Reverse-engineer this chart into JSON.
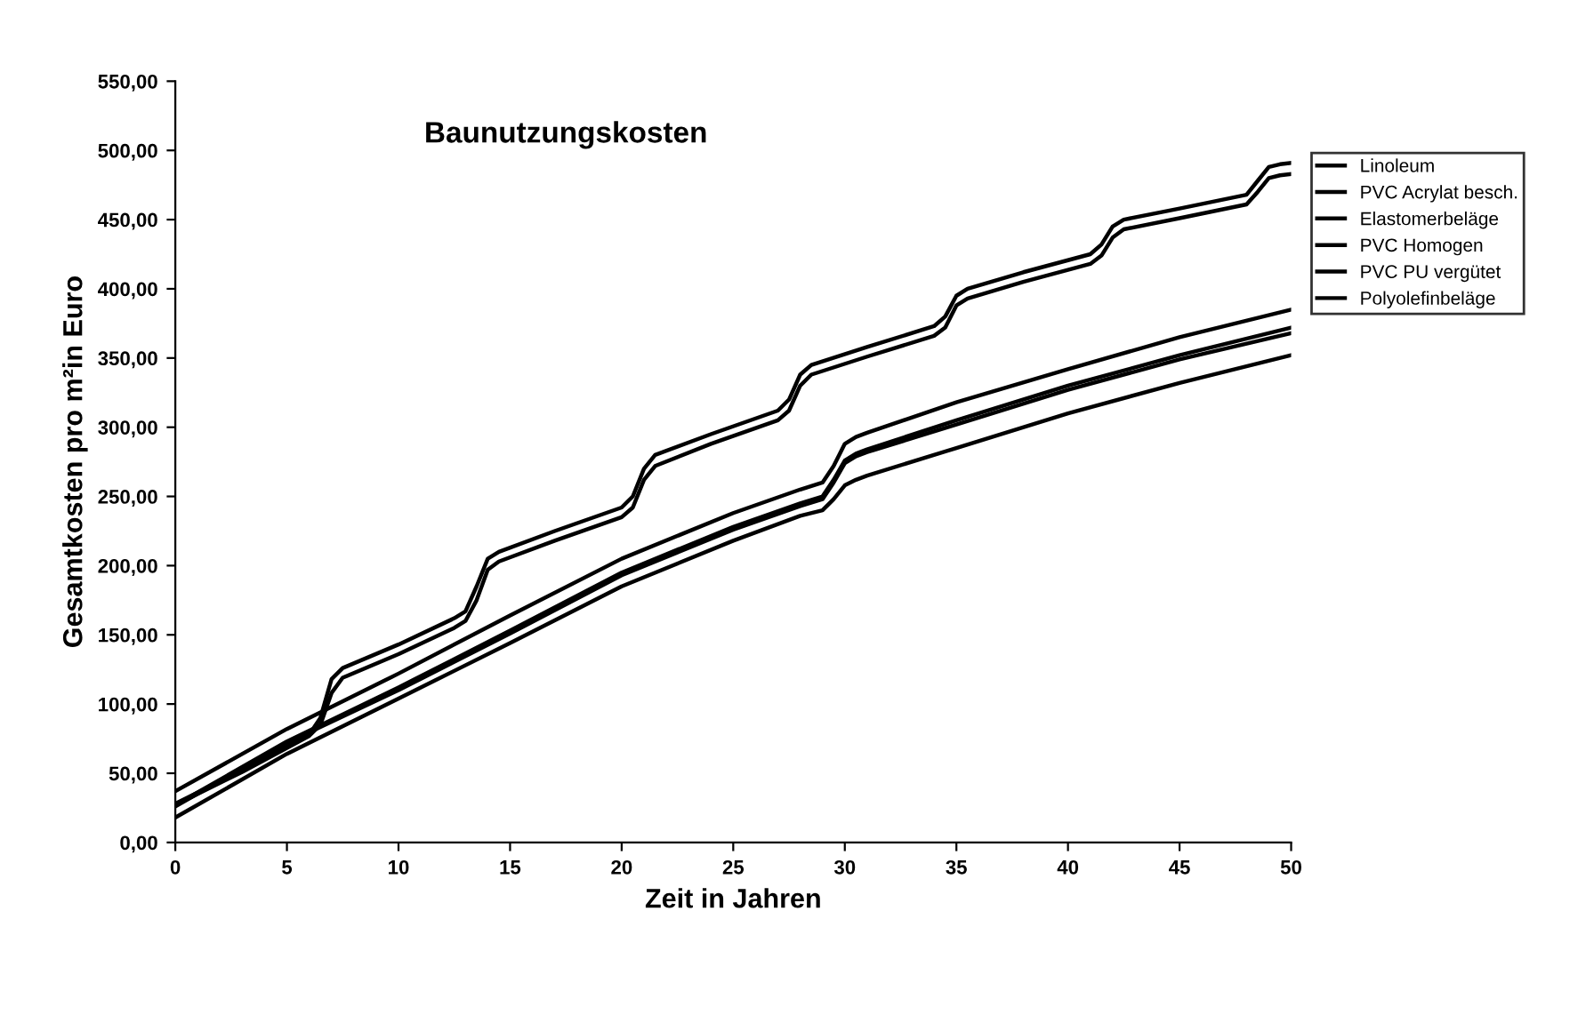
{
  "chart_data": {
    "type": "line",
    "title": "Baunutzungskosten",
    "xlabel": "Zeit in Jahren",
    "ylabel": "Gesamtkosten pro m²in Euro",
    "xlim": [
      0,
      50
    ],
    "xticks": [
      0,
      5,
      10,
      15,
      20,
      25,
      30,
      35,
      40,
      45,
      50
    ],
    "ylim": [
      0,
      550
    ],
    "yticks": [
      {
        "value": 0,
        "label": "0,00"
      },
      {
        "value": 50,
        "label": "50,00"
      },
      {
        "value": 100,
        "label": "100,00"
      },
      {
        "value": 150,
        "label": "150,00"
      },
      {
        "value": 200,
        "label": "200,00"
      },
      {
        "value": 250,
        "label": "250,00"
      },
      {
        "value": 300,
        "label": "300,00"
      },
      {
        "value": 350,
        "label": "350,00"
      },
      {
        "value": 400,
        "label": "400,00"
      },
      {
        "value": 450,
        "label": "450,00"
      },
      {
        "value": 500,
        "label": "500,00"
      },
      {
        "value": 550,
        "label": "550,00"
      }
    ],
    "grid": false,
    "legend": "right",
    "marker": "none",
    "line_style": "solid",
    "series": [
      {
        "name": "Linoleum",
        "color": "#000000",
        "x": [
          0,
          3,
          6,
          6.5,
          7,
          7.5,
          10,
          12.5,
          13,
          13.5,
          14,
          14.5,
          17,
          20,
          20.5,
          21,
          21.5,
          24,
          27,
          27.5,
          28,
          28.5,
          31,
          34,
          34.5,
          35,
          35.5,
          38,
          41,
          41.5,
          42,
          42.5,
          45,
          48,
          48.5,
          49,
          49.5,
          50
        ],
        "values": [
          28,
          52,
          78,
          90,
          118,
          126,
          143,
          162,
          167,
          185,
          205,
          210,
          225,
          242,
          250,
          270,
          280,
          295,
          312,
          320,
          338,
          345,
          358,
          373,
          380,
          395,
          400,
          412,
          425,
          432,
          445,
          450,
          458,
          468,
          478,
          488,
          490,
          491
        ]
      },
      {
        "name": "PVC Acrylat besch.",
        "color": "#000000",
        "x": [
          0,
          3,
          6,
          6.5,
          7,
          7.5,
          10,
          12.5,
          13,
          13.5,
          14,
          14.5,
          17,
          20,
          20.5,
          21,
          21.5,
          24,
          27,
          27.5,
          28,
          28.5,
          31,
          34,
          34.5,
          35,
          35.5,
          38,
          41,
          41.5,
          42,
          42.5,
          45,
          48,
          48.5,
          49,
          49.5,
          50
        ],
        "values": [
          27,
          51,
          77,
          85,
          108,
          119,
          136,
          155,
          160,
          175,
          197,
          203,
          218,
          235,
          242,
          262,
          272,
          288,
          305,
          312,
          330,
          338,
          351,
          366,
          372,
          388,
          393,
          405,
          418,
          424,
          437,
          443,
          451,
          461,
          470,
          480,
          482,
          483
        ]
      },
      {
        "name": "Elastomerbeläge",
        "color": "#000000",
        "x": [
          0,
          5,
          10,
          15,
          20,
          25,
          28,
          29,
          29.5,
          30,
          30.5,
          31,
          35,
          40,
          45,
          50
        ],
        "values": [
          37,
          82,
          122,
          164,
          205,
          238,
          255,
          260,
          272,
          288,
          293,
          296,
          318,
          342,
          365,
          385
        ]
      },
      {
        "name": "PVC Homogen",
        "color": "#000000",
        "x": [
          0,
          5,
          10,
          15,
          20,
          25,
          28,
          29,
          29.5,
          30,
          30.5,
          31,
          35,
          40,
          45,
          50
        ],
        "values": [
          27,
          73,
          112,
          153,
          195,
          228,
          245,
          250,
          262,
          276,
          281,
          284,
          305,
          330,
          352,
          372
        ]
      },
      {
        "name": "PVC PU vergütet",
        "color": "#000000",
        "x": [
          0,
          5,
          10,
          15,
          20,
          25,
          28,
          29,
          29.5,
          30,
          30.5,
          31,
          35,
          40,
          45,
          50
        ],
        "values": [
          26,
          72,
          110,
          151,
          193,
          226,
          243,
          248,
          260,
          274,
          279,
          282,
          302,
          327,
          349,
          368
        ]
      },
      {
        "name": "Polyolefinbeläge",
        "color": "#000000",
        "x": [
          0,
          5,
          10,
          15,
          20,
          25,
          28,
          29,
          29.5,
          30,
          30.5,
          31,
          35,
          40,
          45,
          50
        ],
        "values": [
          18,
          64,
          104,
          144,
          185,
          218,
          236,
          240,
          248,
          258,
          262,
          265,
          285,
          310,
          332,
          352
        ]
      }
    ]
  }
}
